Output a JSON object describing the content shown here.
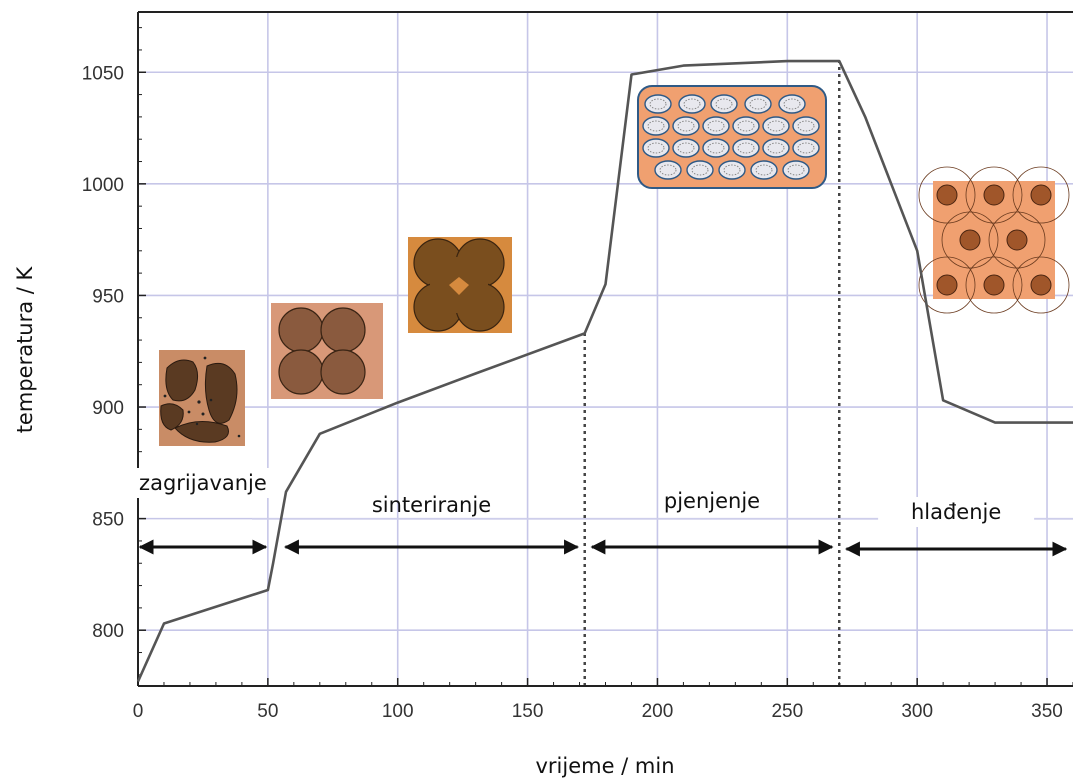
{
  "chart_data": {
    "type": "line",
    "xlabel": "vrijeme / min",
    "ylabel": "temperatura / K",
    "xlim": [
      0,
      360
    ],
    "ylim": [
      775,
      1077
    ],
    "x_ticks": [
      0,
      50,
      100,
      150,
      200,
      250,
      300,
      350
    ],
    "y_ticks": [
      800,
      850,
      900,
      950,
      1000,
      1050
    ],
    "grid": true,
    "series": [
      {
        "x": [
          0,
          10,
          50,
          52,
          57,
          70,
          100,
          130,
          172,
          180,
          190,
          210,
          250,
          270,
          280,
          300,
          310,
          330,
          360
        ],
        "y": [
          777,
          803,
          818,
          830,
          862,
          888,
          902,
          915,
          933,
          955,
          1049,
          1053,
          1055,
          1055,
          1030,
          970,
          903,
          893,
          893
        ]
      }
    ],
    "phase_markers": [
      172,
      270
    ],
    "phases": [
      {
        "label": "zagrijavanje",
        "from": 0,
        "to": 50
      },
      {
        "label": "sinteriranje",
        "from": 56,
        "to": 170
      },
      {
        "label": "pjenjenje",
        "from": 174,
        "to": 268
      },
      {
        "label": "hlađenje",
        "from": 272,
        "to": 358
      }
    ],
    "illustrations": [
      {
        "icon": "loose-powder-icon",
        "colors": [
          "#c98c66",
          "#5a3a22"
        ]
      },
      {
        "icon": "touching-particles-icon",
        "colors": [
          "#d89878",
          "#8a5a3e"
        ]
      },
      {
        "icon": "necked-particles-icon",
        "colors": [
          "#d68a3e",
          "#7a4e1e"
        ]
      },
      {
        "icon": "foam-bubbles-icon",
        "colors": [
          "#f0a070",
          "#2f5a86"
        ]
      },
      {
        "icon": "cooled-foam-icon",
        "colors": [
          "#f0a070",
          "#a0562a"
        ]
      }
    ],
    "line_color": "#555555",
    "grid_color": "#c6c6e8"
  }
}
